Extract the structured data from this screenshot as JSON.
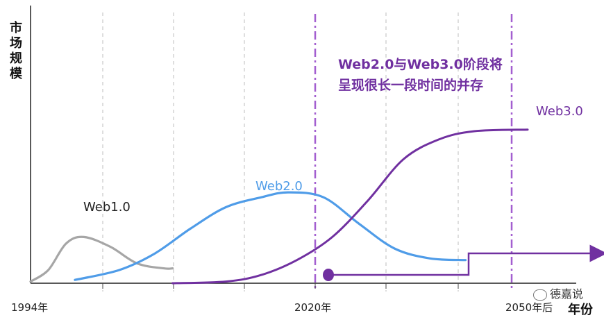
{
  "y_axis_title": "市场规模",
  "x_axis_title": "年份",
  "annotation_line1": "Web2.0与Web3.0阶段将",
  "annotation_line2": "呈现很长一段时间的并存",
  "watermark": "德嘉说",
  "colors": {
    "web1": "#a6a6a6",
    "web2": "#4f9ce8",
    "web3": "#7030a0",
    "divider": "#a35fd0",
    "axis": "#7030a0",
    "grid": "#bdbdbd"
  },
  "chart_data": {
    "type": "line",
    "title": "",
    "xlabel": "年份",
    "ylabel": "市场规模",
    "x_ticks": [
      "1994年",
      "2020年",
      "2050年后"
    ],
    "vertical_markers": [
      "2020年",
      "2050年后"
    ],
    "grid": "vertical dashed",
    "series": [
      {
        "name": "Web1.0",
        "color": "#a6a6a6",
        "points": [
          [
            1994,
            0.01
          ],
          [
            1996,
            0.08
          ],
          [
            1998,
            0.24
          ],
          [
            2000,
            0.28
          ],
          [
            2003,
            0.22
          ],
          [
            2006,
            0.12
          ],
          [
            2009,
            0.09
          ],
          [
            2010,
            0.09
          ]
        ]
      },
      {
        "name": "Web2.0",
        "color": "#4f9ce8",
        "points": [
          [
            1999,
            0.02
          ],
          [
            2004,
            0.08
          ],
          [
            2008,
            0.18
          ],
          [
            2012,
            0.33
          ],
          [
            2016,
            0.46
          ],
          [
            2020,
            0.52
          ],
          [
            2023,
            0.55
          ],
          [
            2027,
            0.52
          ],
          [
            2031,
            0.36
          ],
          [
            2035,
            0.21
          ],
          [
            2039,
            0.15
          ],
          [
            2043,
            0.14
          ]
        ]
      },
      {
        "name": "Web3.0",
        "color": "#7030a0",
        "points": [
          [
            2010,
            0.0
          ],
          [
            2016,
            0.01
          ],
          [
            2020,
            0.05
          ],
          [
            2024,
            0.14
          ],
          [
            2028,
            0.28
          ],
          [
            2032,
            0.5
          ],
          [
            2036,
            0.75
          ],
          [
            2040,
            0.87
          ],
          [
            2044,
            0.92
          ],
          [
            2050,
            0.93
          ]
        ]
      }
    ]
  }
}
